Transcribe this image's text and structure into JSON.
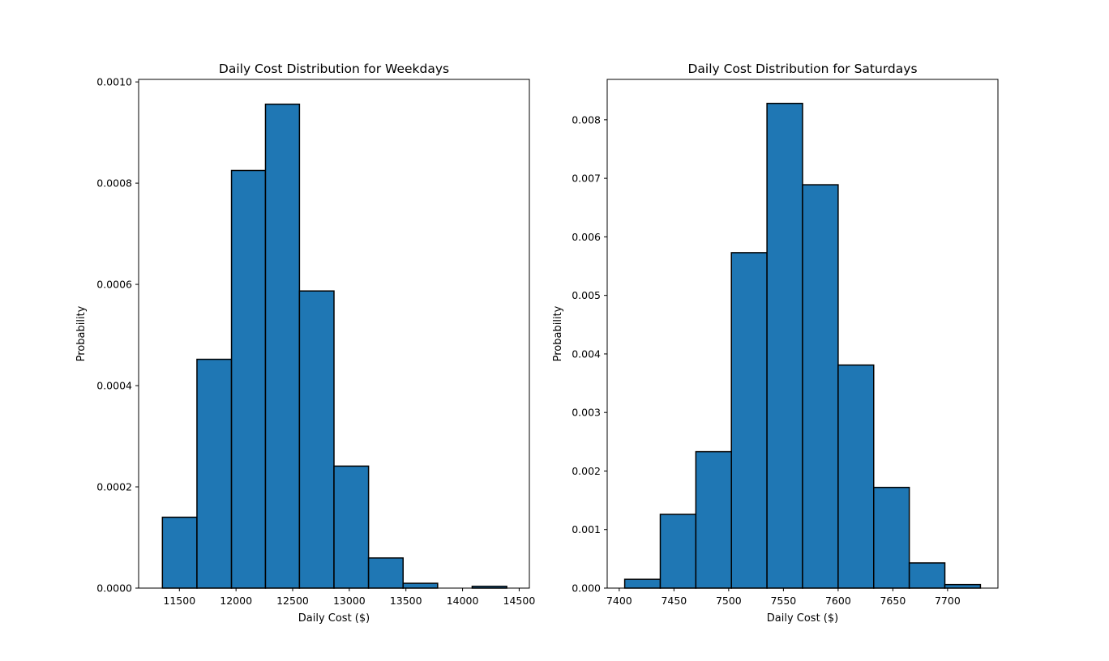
{
  "chart_data": [
    {
      "type": "bar",
      "title": "Daily Cost Distribution for Weekdays",
      "xlabel": "Daily Cost ($)",
      "ylabel": "Probability",
      "bin_edges": [
        11350,
        11655,
        11960,
        12260,
        12560,
        12865,
        13170,
        13475,
        13780,
        14085,
        14390
      ],
      "values": [
        0.00014,
        0.000452,
        0.000825,
        0.000956,
        0.000587,
        0.000241,
        5.95e-05,
        9.5e-06,
        0.0,
        3.5e-06
      ],
      "xlim": [
        11140,
        14590
      ],
      "ylim": [
        0,
        0.001005
      ],
      "xticks": [
        11500,
        12000,
        12500,
        13000,
        13500,
        14000,
        14500
      ],
      "xtick_labels": [
        "11500",
        "12000",
        "12500",
        "13000",
        "13500",
        "14000",
        "14500"
      ],
      "yticks": [
        0,
        0.0002,
        0.0004,
        0.0006,
        0.0008,
        0.001
      ],
      "ytick_labels": [
        "0.0000",
        "0.0002",
        "0.0004",
        "0.0006",
        "0.0008",
        "0.0010"
      ],
      "bar_color": "#1f77b4",
      "edge_color": "#000000",
      "grid": false
    },
    {
      "type": "bar",
      "title": "Daily Cost Distribution for Saturdays",
      "xlabel": "Daily Cost ($)",
      "ylabel": "Probability",
      "bin_edges": [
        7405,
        7437.5,
        7470,
        7502.5,
        7535,
        7567.5,
        7600,
        7632.5,
        7665,
        7697.5,
        7730
      ],
      "values": [
        0.00015,
        0.00126,
        0.00233,
        0.00573,
        0.00828,
        0.00689,
        0.00381,
        0.00172,
        0.00043,
        6e-05
      ],
      "xlim": [
        7389,
        7746
      ],
      "ylim": [
        0,
        0.00869
      ],
      "xticks": [
        7400,
        7450,
        7500,
        7550,
        7600,
        7650,
        7700
      ],
      "xtick_labels": [
        "7400",
        "7450",
        "7500",
        "7550",
        "7600",
        "7650",
        "7700"
      ],
      "yticks": [
        0,
        0.001,
        0.002,
        0.003,
        0.004,
        0.005,
        0.006,
        0.007,
        0.008
      ],
      "ytick_labels": [
        "0.000",
        "0.001",
        "0.002",
        "0.003",
        "0.004",
        "0.005",
        "0.006",
        "0.007",
        "0.008"
      ],
      "bar_color": "#1f77b4",
      "edge_color": "#000000",
      "grid": false
    }
  ]
}
